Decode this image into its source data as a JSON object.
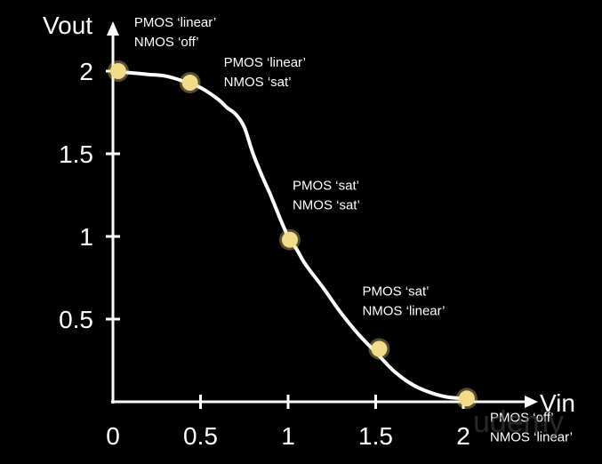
{
  "chart_data": {
    "type": "line",
    "title": "",
    "xlabel": "Vin",
    "ylabel": "Vout",
    "xlim": [
      0,
      2
    ],
    "ylim": [
      0,
      2
    ],
    "x_ticks": [
      {
        "value": 0,
        "label": "0"
      },
      {
        "value": 0.5,
        "label": "0.5"
      },
      {
        "value": 1,
        "label": "1"
      },
      {
        "value": 1.5,
        "label": "1.5"
      },
      {
        "value": 2,
        "label": "2"
      }
    ],
    "y_ticks": [
      {
        "value": 0.5,
        "label": "0.5"
      },
      {
        "value": 1,
        "label": "1"
      },
      {
        "value": 1.5,
        "label": "1.5"
      },
      {
        "value": 2,
        "label": "2"
      }
    ],
    "grid": false,
    "series": [
      {
        "x": [
          0,
          0.1,
          0.2,
          0.3,
          0.4,
          0.5,
          0.6,
          0.65,
          0.7,
          0.75,
          0.8,
          0.85,
          0.9,
          0.95,
          1.0,
          1.05,
          1.1,
          1.2,
          1.3,
          1.4,
          1.5,
          1.6,
          1.7,
          1.8,
          1.9,
          2.0
        ],
        "y": [
          2.0,
          1.99,
          1.98,
          1.97,
          1.94,
          1.9,
          1.83,
          1.78,
          1.74,
          1.66,
          1.5,
          1.37,
          1.25,
          1.12,
          1.0,
          0.92,
          0.83,
          0.69,
          0.54,
          0.41,
          0.3,
          0.19,
          0.11,
          0.06,
          0.03,
          0.02
        ],
        "color": "#ffffff"
      }
    ],
    "points": [
      {
        "x": 0.03,
        "y": 2.0,
        "labels": [
          "PMOS ‘linear’",
          "NMOS ‘off’"
        ]
      },
      {
        "x": 0.44,
        "y": 1.93,
        "labels": [
          "PMOS ‘linear’",
          "NMOS ‘sat’"
        ]
      },
      {
        "x": 1.01,
        "y": 0.98,
        "labels": [
          "PMOS ‘sat’",
          "NMOS ‘sat’"
        ]
      },
      {
        "x": 1.52,
        "y": 0.32,
        "labels": [
          "PMOS ‘sat’",
          "NMOS ‘linear’"
        ]
      },
      {
        "x": 2.02,
        "y": 0.02,
        "labels": [
          "PMOS ‘off’",
          "NMOS ‘linear’"
        ]
      }
    ],
    "point_color": "#f2dc8a",
    "axis_color": "#ffffff"
  },
  "watermark": {
    "text": "udemy"
  }
}
